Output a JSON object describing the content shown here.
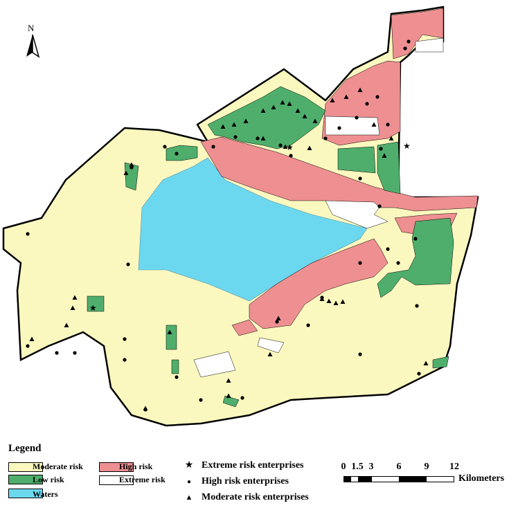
{
  "map": {
    "north_label": "N",
    "colors": {
      "moderate": "#fbf8bf",
      "low": "#4fae6c",
      "waters": "#6cd8f0",
      "high": "#ee8f91",
      "extreme": "#ffffff",
      "outline": "#000000"
    }
  },
  "legend": {
    "title": "Legend",
    "zones": [
      {
        "label": "Moderate risk",
        "color": "#fbf8bf"
      },
      {
        "label": "Low risk",
        "color": "#4fae6c"
      },
      {
        "label": "Waters",
        "color": "#6cd8f0"
      },
      {
        "label": "High risk",
        "color": "#ee8f91"
      },
      {
        "label": "Extreme risk",
        "color": "#ffffff"
      }
    ],
    "enterprises": [
      {
        "symbol": "★",
        "label": "Extreme risk enterprises"
      },
      {
        "symbol": "●",
        "label": "High risk enterprises"
      },
      {
        "symbol": "▲",
        "label": "Moderate risk enterprises"
      }
    ]
  },
  "scale": {
    "ticks": [
      "0",
      "1.5",
      "3",
      "6",
      "9",
      "12"
    ],
    "unit": "Kilometers"
  }
}
